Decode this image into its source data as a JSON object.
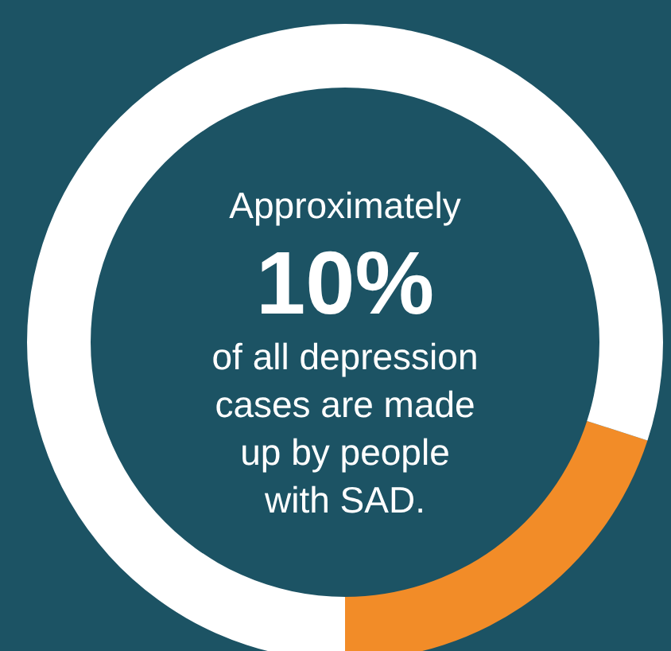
{
  "chart_data": {
    "type": "donut",
    "categories": [
      null,
      null
    ],
    "values": [
      20,
      80
    ],
    "colors": [
      "#f28c28",
      "#ffffff"
    ],
    "annotations": [
      "Approximately",
      "10%",
      "of all depression",
      "cases are made",
      "up by people",
      "with SAD."
    ]
  }
}
